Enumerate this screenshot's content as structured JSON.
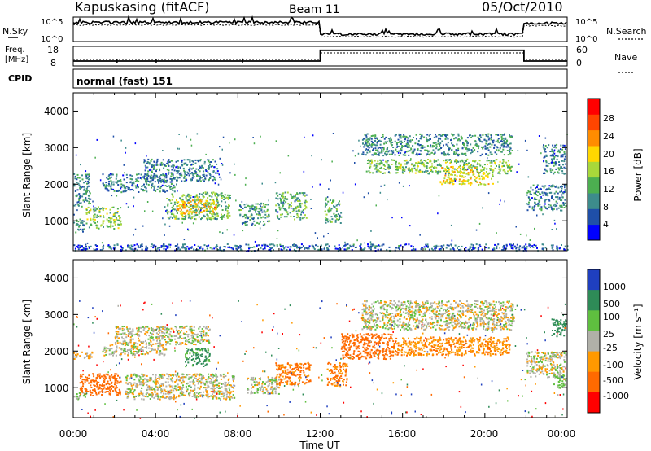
{
  "header": {
    "station": "Kapuskasing (fitACF)",
    "beam": "Beam 11",
    "date": "05/Oct/2010"
  },
  "nsky_panel": {
    "left_label": "N.Sky",
    "left_ticks": [
      "10^5",
      "10^0"
    ],
    "right_ticks": [
      "10^5",
      "10^0"
    ],
    "right_label": "N.Search"
  },
  "freq_panel": {
    "left_label_line1": "Freq.",
    "left_label_line2": "[MHz]",
    "left_ticks": [
      "18",
      "8"
    ],
    "right_ticks": [
      "60",
      "0"
    ],
    "right_label": "Nave"
  },
  "cpid": {
    "label": "CPID",
    "value": "normal (fast) 151"
  },
  "axes": {
    "ylabel": "Slant Range [km]",
    "yticks": [
      "4000",
      "3000",
      "2000",
      "1000"
    ],
    "xlabel": "Time UT",
    "xticks": [
      "00:00",
      "04:00",
      "08:00",
      "12:00",
      "16:00",
      "20:00",
      "00:00"
    ]
  },
  "power_scale": {
    "label": "Power [dB]",
    "ticks": [
      "28",
      "24",
      "20",
      "16",
      "12",
      "8",
      "4"
    ],
    "colors": [
      "#0000ff",
      "#1f4fa8",
      "#3d8c8c",
      "#4caf50",
      "#a8d83a",
      "#ffd700",
      "#ff8c00",
      "#ff4500",
      "#ff0000"
    ]
  },
  "velocity_scale": {
    "label": "Velocity [m s⁻¹]",
    "ticks": [
      "1000",
      "500",
      "100",
      "25",
      "-25",
      "-100",
      "-500",
      "-1000"
    ],
    "colors": [
      "#1f3fbf",
      "#2e8b57",
      "#5fbf3f",
      "#b0b0a8",
      "#ff9900",
      "#ff6a00",
      "#ff0000"
    ]
  },
  "chart_data": {
    "type": "heatmap",
    "x_range_hours": [
      0,
      24
    ],
    "y_range_km": [
      180,
      4500
    ],
    "power_regions": [
      {
        "t": [
          0.0,
          0.5
        ],
        "r": [
          650,
          1100
        ],
        "level": 10
      },
      {
        "t": [
          0.6,
          2.3
        ],
        "r": [
          800,
          1400
        ],
        "level": 14
      },
      {
        "t": [
          0.0,
          0.8
        ],
        "r": [
          1400,
          2300
        ],
        "level": 9
      },
      {
        "t": [
          1.4,
          5.0
        ],
        "r": [
          1800,
          2300
        ],
        "level": 8
      },
      {
        "t": [
          3.4,
          7.0
        ],
        "r": [
          2100,
          2700
        ],
        "level": 8
      },
      {
        "t": [
          4.5,
          7.6
        ],
        "r": [
          1050,
          1800
        ],
        "level": 13
      },
      {
        "t": [
          5.0,
          7.0
        ],
        "r": [
          1200,
          1600
        ],
        "level": 20
      },
      {
        "t": [
          8.0,
          9.5
        ],
        "r": [
          900,
          1500
        ],
        "level": 10
      },
      {
        "t": [
          9.8,
          11.3
        ],
        "r": [
          1050,
          1800
        ],
        "level": 12
      },
      {
        "t": [
          12.2,
          13.0
        ],
        "r": [
          950,
          1600
        ],
        "level": 12
      },
      {
        "t": [
          14.0,
          21.3
        ],
        "r": [
          2800,
          3400
        ],
        "level": 9
      },
      {
        "t": [
          14.2,
          21.3
        ],
        "r": [
          2300,
          2700
        ],
        "level": 14
      },
      {
        "t": [
          17.8,
          20.4
        ],
        "r": [
          2000,
          2500
        ],
        "level": 18
      },
      {
        "t": [
          22.0,
          23.9
        ],
        "r": [
          1300,
          2000
        ],
        "level": 8
      },
      {
        "t": [
          22.8,
          23.9
        ],
        "r": [
          2300,
          3100
        ],
        "level": 8
      },
      {
        "t": [
          0.0,
          24.0
        ],
        "r": [
          200,
          380
        ],
        "level": 6
      }
    ],
    "velocity_regions": [
      {
        "t": [
          0.0,
          0.6
        ],
        "r": [
          700,
          900
        ],
        "v": 100
      },
      {
        "t": [
          0.3,
          2.3
        ],
        "r": [
          800,
          1400
        ],
        "v": -500
      },
      {
        "t": [
          0.0,
          0.9
        ],
        "r": [
          1800,
          2000
        ],
        "v": -100
      },
      {
        "t": [
          1.4,
          4.5
        ],
        "r": [
          1900,
          2200
        ],
        "v": 0
      },
      {
        "t": [
          2.0,
          6.6
        ],
        "r": [
          2200,
          2700
        ],
        "v": 0
      },
      {
        "t": [
          5.4,
          6.6
        ],
        "r": [
          1600,
          2100
        ],
        "v": 300
      },
      {
        "t": [
          2.5,
          7.8
        ],
        "r": [
          700,
          1400
        ],
        "v": 0
      },
      {
        "t": [
          8.4,
          10.0
        ],
        "r": [
          850,
          1300
        ],
        "v": 0
      },
      {
        "t": [
          9.8,
          11.5
        ],
        "r": [
          1100,
          1700
        ],
        "v": -300
      },
      {
        "t": [
          12.3,
          13.3
        ],
        "r": [
          1050,
          1700
        ],
        "v": -300
      },
      {
        "t": [
          13.0,
          15.5
        ],
        "r": [
          1800,
          2500
        ],
        "v": -500
      },
      {
        "t": [
          14.0,
          21.4
        ],
        "r": [
          2600,
          3400
        ],
        "v": 0
      },
      {
        "t": [
          15.5,
          21.2
        ],
        "r": [
          1900,
          2400
        ],
        "v": -200
      },
      {
        "t": [
          22.0,
          23.9
        ],
        "r": [
          1300,
          2000
        ],
        "v": 0
      },
      {
        "t": [
          23.3,
          23.9
        ],
        "r": [
          1000,
          1400
        ],
        "v": 100
      },
      {
        "t": [
          23.2,
          23.9
        ],
        "r": [
          2400,
          2900
        ],
        "v": 400
      }
    ],
    "frequency_mhz": [
      {
        "t": [
          0,
          12
        ],
        "f": 10.5
      },
      {
        "t": [
          12,
          21.9
        ],
        "f": 16
      },
      {
        "t": [
          21.9,
          24
        ],
        "f": 10.5
      }
    ],
    "nave": [
      {
        "t": [
          0,
          12
        ],
        "n": 20
      },
      {
        "t": [
          12,
          21.9
        ],
        "n": 40
      },
      {
        "t": [
          21.9,
          24
        ],
        "n": 20
      }
    ],
    "nsky_level": [
      {
        "t": [
          0,
          12
        ],
        "v": 0.78
      },
      {
        "t": [
          12,
          21.9
        ],
        "v": 0.3
      },
      {
        "t": [
          21.9,
          24
        ],
        "v": 0.75
      }
    ]
  }
}
